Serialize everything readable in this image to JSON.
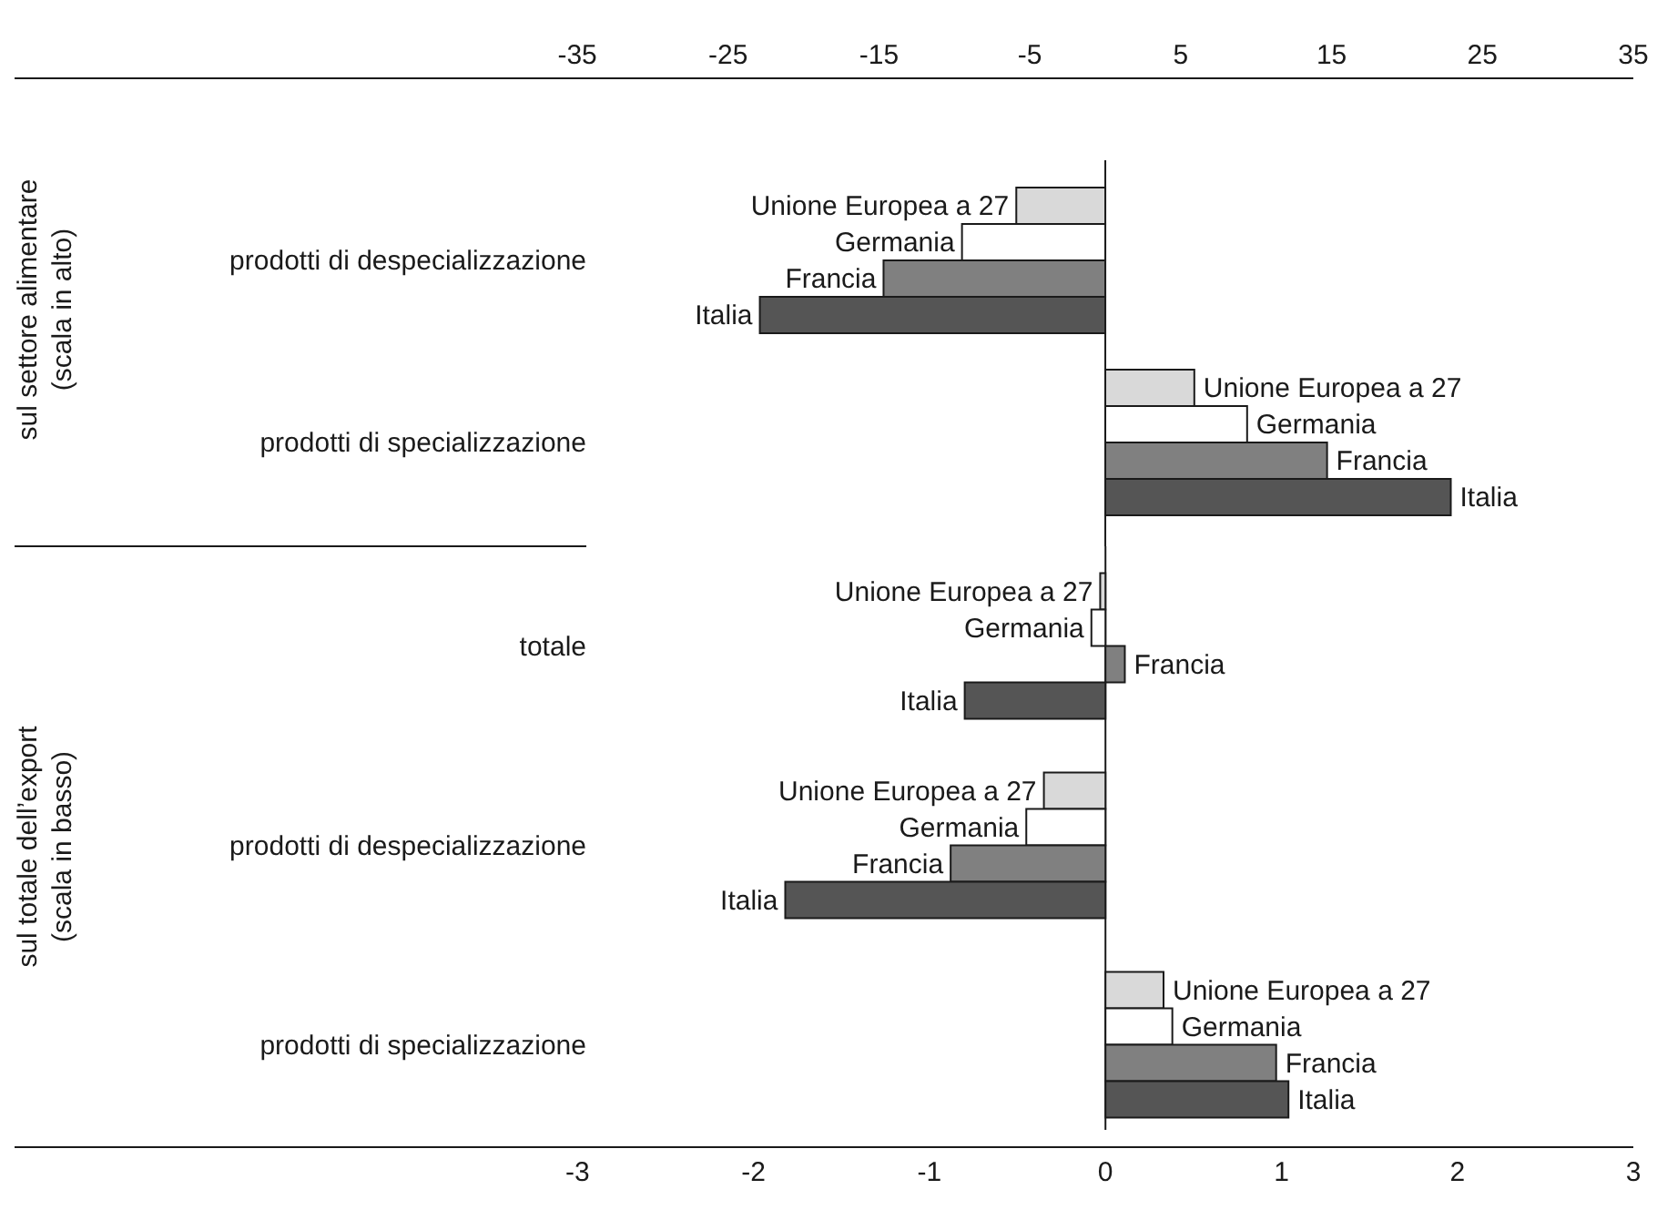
{
  "chart_data": [
    {
      "type": "bar",
      "orientation": "horizontal",
      "ylabel": "sul settore alimentare\n(scala in alto)",
      "categories": [
        "prodotti di despecializzazione",
        "prodotti di specializzazione"
      ],
      "xlim": [
        -72.3,
        35
      ],
      "xticks": [
        -35,
        -25,
        -15,
        -5,
        5,
        15,
        25,
        35
      ],
      "series": [
        {
          "name": "Unione Europea a 27",
          "color": "#d9d9d9",
          "values": [
            -5.9,
            5.9
          ]
        },
        {
          "name": "Germania",
          "color": "#ffffff",
          "values": [
            -9.5,
            9.4
          ]
        },
        {
          "name": "Francia",
          "color": "#808080",
          "values": [
            -14.7,
            14.7
          ]
        },
        {
          "name": "Italia",
          "color": "#555555",
          "values": [
            -22.9,
            22.9
          ]
        }
      ]
    },
    {
      "type": "bar",
      "orientation": "horizontal",
      "ylabel": "sul totale dell’export\n(scala in basso)",
      "categories": [
        "totale",
        "prodotti di despecializzazione",
        "prodotti di specializzazione"
      ],
      "xlim": [
        -6.2,
        3
      ],
      "xticks": [
        -3,
        -2,
        -1,
        0,
        1,
        2,
        3
      ],
      "series": [
        {
          "name": "Unione Europea a 27",
          "color": "#d9d9d9",
          "values": [
            -0.03,
            -0.35,
            0.33
          ]
        },
        {
          "name": "Germania",
          "color": "#ffffff",
          "values": [
            -0.08,
            -0.45,
            0.38
          ]
        },
        {
          "name": "Francia",
          "color": "#808080",
          "values": [
            0.11,
            -0.88,
            0.97
          ]
        },
        {
          "name": "Italia",
          "color": "#555555",
          "values": [
            -0.8,
            -1.82,
            1.04
          ]
        }
      ]
    }
  ]
}
